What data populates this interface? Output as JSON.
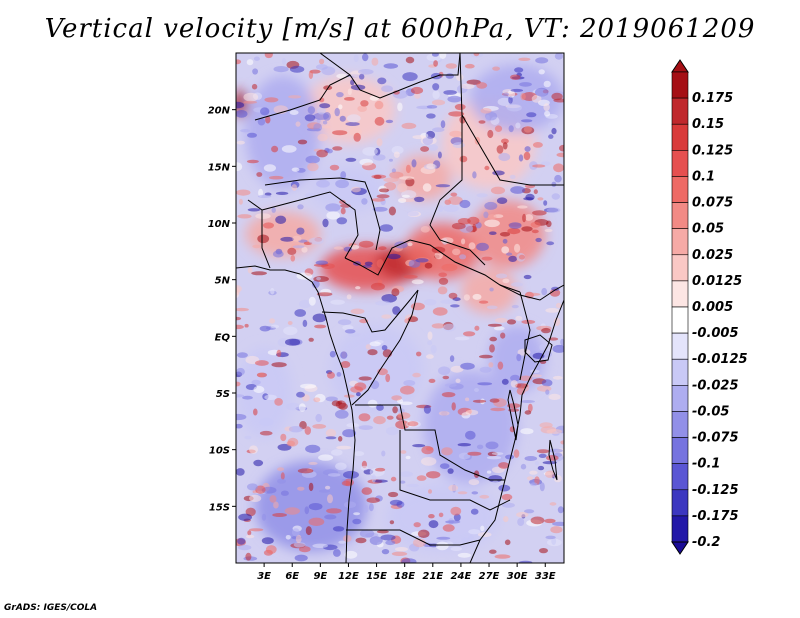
{
  "title": "Vertical velocity [m/s] at 600hPa, VT: 2019061209",
  "credit": "GrADS: IGES/COLA",
  "map": {
    "lon_range": [
      0,
      35
    ],
    "lat_range": [
      -20,
      25
    ],
    "lon_ticks": [
      {
        "value": 3,
        "label": "3E"
      },
      {
        "value": 6,
        "label": "6E"
      },
      {
        "value": 9,
        "label": "9E"
      },
      {
        "value": 12,
        "label": "12E"
      },
      {
        "value": 15,
        "label": "15E"
      },
      {
        "value": 18,
        "label": "18E"
      },
      {
        "value": 21,
        "label": "21E"
      },
      {
        "value": 24,
        "label": "24E"
      },
      {
        "value": 27,
        "label": "27E"
      },
      {
        "value": 30,
        "label": "30E"
      },
      {
        "value": 33,
        "label": "33E"
      }
    ],
    "lat_ticks": [
      {
        "value": 20,
        "label": "20N"
      },
      {
        "value": 15,
        "label": "15N"
      },
      {
        "value": 10,
        "label": "10N"
      },
      {
        "value": 5,
        "label": "5N"
      },
      {
        "value": 0,
        "label": "EQ"
      },
      {
        "value": -5,
        "label": "5S"
      },
      {
        "value": -10,
        "label": "10S"
      },
      {
        "value": -15,
        "label": "15S"
      }
    ]
  },
  "colorbar": {
    "levels": [
      {
        "label": "0.175",
        "color": "#a50f15"
      },
      {
        "label": "0.15",
        "color": "#c0282d"
      },
      {
        "label": "0.125",
        "color": "#d93a3a"
      },
      {
        "label": "0.1",
        "color": "#e65050"
      },
      {
        "label": "0.075",
        "color": "#ee6a65"
      },
      {
        "label": "0.05",
        "color": "#f28a85"
      },
      {
        "label": "0.025",
        "color": "#f6aaa6"
      },
      {
        "label": "0.0125",
        "color": "#fac8c5"
      },
      {
        "label": "0.005",
        "color": "#fde6e4"
      },
      {
        "label": "-0.005",
        "color": "#ffffff"
      },
      {
        "label": "-0.0125",
        "color": "#e4e4fb"
      },
      {
        "label": "-0.025",
        "color": "#c9c9f6"
      },
      {
        "label": "-0.05",
        "color": "#aeadf0"
      },
      {
        "label": "-0.075",
        "color": "#9290e8"
      },
      {
        "label": "-0.1",
        "color": "#7673df"
      },
      {
        "label": "-0.125",
        "color": "#5a56d4"
      },
      {
        "label": "-0.175",
        "color": "#3c37c0"
      },
      {
        "label": "-0.2",
        "color": "#2318a8"
      }
    ],
    "top_color": "#a50f15",
    "bottom_color": "#1a0c96"
  },
  "field_regions": [
    {
      "lon": 0.5,
      "lat": 20.5,
      "rx": 0.8,
      "ry": 1.2,
      "color": "#a50f15"
    },
    {
      "lon": 14,
      "lat": 6,
      "rx": 5,
      "ry": 2,
      "color": "#e65050"
    },
    {
      "lon": 18,
      "lat": 6.5,
      "rx": 3,
      "ry": 1.5,
      "color": "#c0282d"
    },
    {
      "lon": 22,
      "lat": 7.5,
      "rx": 4,
      "ry": 2.5,
      "color": "#ee6a65"
    },
    {
      "lon": 29,
      "lat": 9,
      "rx": 4,
      "ry": 3,
      "color": "#f28a85"
    },
    {
      "lon": 27,
      "lat": 4,
      "rx": 3,
      "ry": 2,
      "color": "#f6aaa6"
    },
    {
      "lon": 5,
      "lat": 9,
      "rx": 4,
      "ry": 2,
      "color": "#f6aaa6"
    },
    {
      "lon": 27,
      "lat": 17,
      "rx": 5,
      "ry": 4,
      "color": "#fac8c5"
    },
    {
      "lon": 12,
      "lat": 20,
      "rx": 5,
      "ry": 3,
      "color": "#fac8c5"
    },
    {
      "lon": 5,
      "lat": 18,
      "rx": 4,
      "ry": 5,
      "color": "#aeadf0"
    },
    {
      "lon": 30,
      "lat": 21,
      "rx": 5,
      "ry": 3,
      "color": "#aeadf0"
    },
    {
      "lon": 3,
      "lat": -5,
      "rx": 3,
      "ry": 4,
      "color": "#c9c9f6"
    },
    {
      "lon": 15,
      "lat": -3,
      "rx": 5,
      "ry": 4,
      "color": "#c9c9f6"
    },
    {
      "lon": 25,
      "lat": -8,
      "rx": 5,
      "ry": 5,
      "color": "#aeadf0"
    },
    {
      "lon": 8,
      "lat": -15,
      "rx": 6,
      "ry": 4,
      "color": "#9290e8"
    },
    {
      "lon": 22,
      "lat": -16,
      "rx": 6,
      "ry": 3,
      "color": "#c9c9f6"
    },
    {
      "lon": 30,
      "lat": -2,
      "rx": 3,
      "ry": 3,
      "color": "#aeadf0"
    },
    {
      "lon": 12,
      "lat": 13,
      "rx": 4,
      "ry": 2,
      "color": "#c9c9f6"
    },
    {
      "lon": 20,
      "lat": 14,
      "rx": 3,
      "ry": 2,
      "color": "#f6aaa6"
    }
  ]
}
